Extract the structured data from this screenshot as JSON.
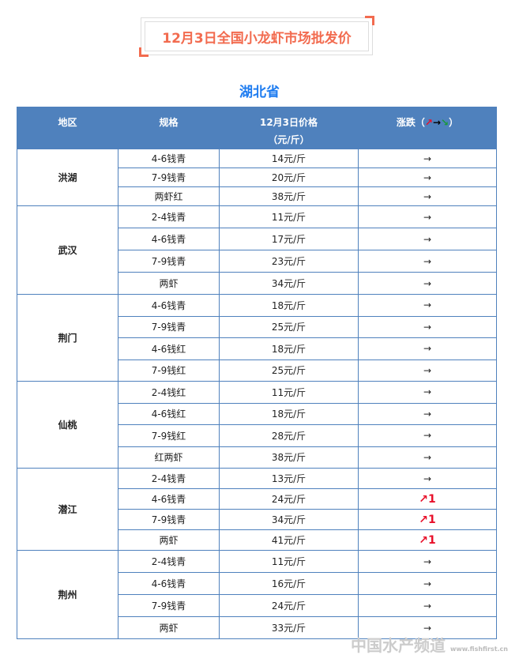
{
  "title": "12月3日全国小龙虾市场批发价",
  "province": "湖北省",
  "header": {
    "region": "地区",
    "spec": "规格",
    "price": "12月3日价格",
    "price_unit": "（元/斤）",
    "change": "涨跌（",
    "change_end": "）",
    "legend_up": "↗",
    "legend_flat": "→",
    "legend_down": "↘"
  },
  "colors": {
    "header_bg": "#4f81bd",
    "title": "#f26b4f",
    "province": "#1e7cf0",
    "up": "#e8102a"
  },
  "groups": [
    {
      "region": "洪湖",
      "rows": [
        [
          "4-6钱青",
          "14元/斤",
          "→"
        ],
        [
          "7-9钱青",
          "20元/斤",
          "→"
        ],
        [
          "两虾红",
          "38元/斤",
          "→"
        ]
      ]
    },
    {
      "region": "武汉",
      "rows": [
        [
          "2-4钱青",
          "11元/斤",
          "→"
        ],
        [
          "4-6钱青",
          "17元/斤",
          "→"
        ],
        [
          "7-9钱青",
          "23元/斤",
          "→"
        ],
        [
          "两虾",
          "34元/斤",
          "→"
        ]
      ]
    },
    {
      "region": "荆门",
      "rows": [
        [
          "4-6钱青",
          "18元/斤",
          "→"
        ],
        [
          "7-9钱青",
          "25元/斤",
          "→"
        ],
        [
          "4-6钱红",
          "18元/斤",
          "→"
        ],
        [
          "7-9钱红",
          "25元/斤",
          "→"
        ]
      ]
    },
    {
      "region": "仙桃",
      "rows": [
        [
          "2-4钱红",
          "11元/斤",
          "→"
        ],
        [
          "4-6钱红",
          "18元/斤",
          "→"
        ],
        [
          "7-9钱红",
          "28元/斤",
          "→"
        ],
        [
          "红两虾",
          "38元/斤",
          "→"
        ]
      ]
    },
    {
      "region": "潜江",
      "rows": [
        [
          "2-4钱青",
          "13元/斤",
          "→"
        ],
        [
          "4-6钱青",
          "24元/斤",
          "↗1"
        ],
        [
          "7-9钱青",
          "34元/斤",
          "↗1"
        ],
        [
          "两虾",
          "41元/斤",
          "↗1"
        ]
      ]
    },
    {
      "region": "荆州",
      "rows": [
        [
          "2-4钱青",
          "11元/斤",
          "→"
        ],
        [
          "4-6钱青",
          "16元/斤",
          "→"
        ],
        [
          "7-9钱青",
          "24元/斤",
          "→"
        ],
        [
          "两虾",
          "33元/斤",
          "→"
        ]
      ]
    }
  ],
  "watermark": {
    "text": "中国水产频道",
    "url": "www.fishfirst.cn"
  }
}
